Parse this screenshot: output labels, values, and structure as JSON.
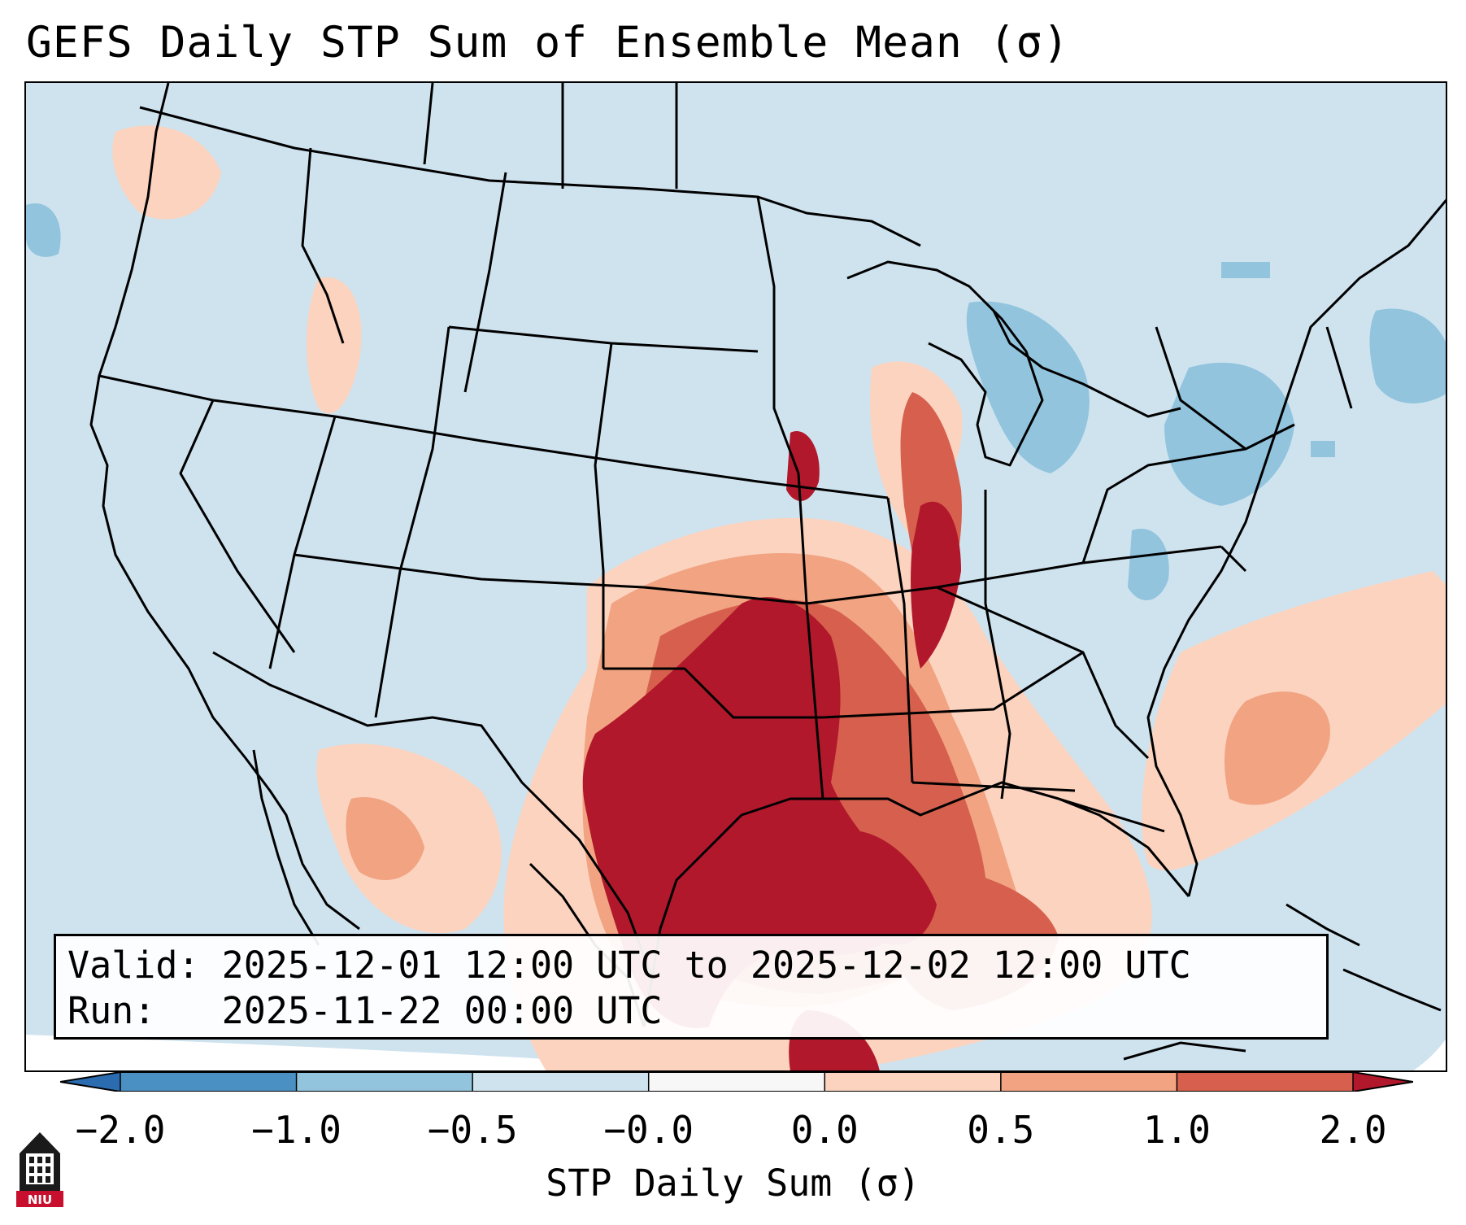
{
  "title": "GEFS Daily STP Sum of Ensemble Mean (σ)",
  "info": {
    "valid_line": "Valid: 2025-12-01 12:00 UTC to 2025-12-02 12:00 UTC",
    "run_line": "Run:   2025-11-22 00:00 UTC"
  },
  "colorbar": {
    "label": "STP Daily Sum (σ)",
    "ticks": [
      "−2.0",
      "−1.0",
      "−0.5",
      "−0.0",
      "0.0",
      "0.5",
      "1.0",
      "2.0"
    ],
    "bins": [
      {
        "range": "< -2.0",
        "color": "#2b6cb0"
      },
      {
        "range": "-2.0 to -1.0",
        "color": "#4a90c2"
      },
      {
        "range": "-1.0 to -0.5",
        "color": "#92c4de"
      },
      {
        "range": "-0.5 to -0.0",
        "color": "#cfe3ef"
      },
      {
        "range": "-0.0 to 0.0",
        "color": "#f7f7f7"
      },
      {
        "range": "0.0 to 0.5",
        "color": "#fbd3bf"
      },
      {
        "range": "0.5 to 1.0",
        "color": "#f1a382"
      },
      {
        "range": "1.0 to 2.0",
        "color": "#d6604d"
      },
      {
        "range": "> 2.0",
        "color": "#b2182b"
      }
    ]
  },
  "map": {
    "background_color": "#cfe3ef",
    "region": "Contiguous United States"
  },
  "logo": {
    "text": "NIU"
  }
}
